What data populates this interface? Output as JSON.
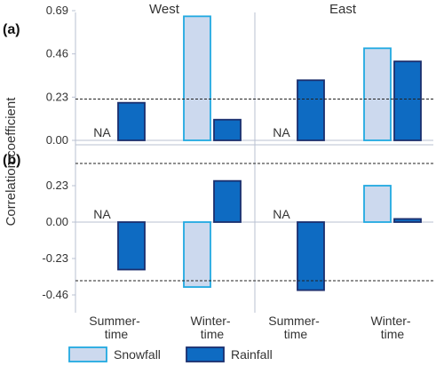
{
  "chart_data": {
    "type": "bar",
    "ylabel": "Correlation coefficient",
    "columns": [
      "West",
      "East"
    ],
    "categories": [
      [
        "Summer-",
        "time"
      ],
      [
        "Winter-",
        "time"
      ]
    ],
    "na_label": "NA",
    "legend": {
      "placement": "bottom-left",
      "items": [
        "Snowfall",
        "Rainfall"
      ]
    },
    "colors": {
      "snowfall_fill": "#ccd9ee",
      "snowfall_stroke": "#21a9e1",
      "rainfall_fill": "#0e6bc2",
      "rainfall_stroke": "#1b2f6e",
      "threshold": "#222222",
      "grid": "#b9c0d2"
    },
    "panels": [
      {
        "label": "(a)",
        "ylim": [
          0,
          0.69
        ],
        "yticks": [
          "0.00",
          "0.23",
          "0.46",
          "0.69"
        ],
        "ytick_values": [
          0,
          0.23,
          0.46,
          0.69
        ],
        "significance_lines": [
          0.22
        ],
        "groups": [
          {
            "column": "West",
            "category": "Summer-time",
            "snowfall": null,
            "rainfall": 0.2
          },
          {
            "column": "West",
            "category": "Winter-time",
            "snowfall": 0.66,
            "rainfall": 0.11
          },
          {
            "column": "East",
            "category": "Summer-time",
            "snowfall": null,
            "rainfall": 0.32
          },
          {
            "column": "East",
            "category": "Winter-time",
            "snowfall": 0.49,
            "rainfall": 0.42
          }
        ]
      },
      {
        "label": "(b)",
        "ylim": [
          -0.46,
          0.46
        ],
        "yticks": [
          "-0.46",
          "-0.23",
          "0.00",
          "0.23"
        ],
        "ytick_values": [
          -0.46,
          -0.23,
          0,
          0.23
        ],
        "significance_lines": [
          0.37,
          -0.37
        ],
        "groups": [
          {
            "column": "West",
            "category": "Summer-time",
            "snowfall": null,
            "rainfall": -0.3
          },
          {
            "column": "West",
            "category": "Winter-time",
            "snowfall": -0.41,
            "rainfall": 0.26
          },
          {
            "column": "East",
            "category": "Summer-time",
            "snowfall": null,
            "rainfall": -0.43
          },
          {
            "column": "East",
            "category": "Winter-time",
            "snowfall": 0.23,
            "rainfall": 0.02
          }
        ]
      }
    ]
  }
}
